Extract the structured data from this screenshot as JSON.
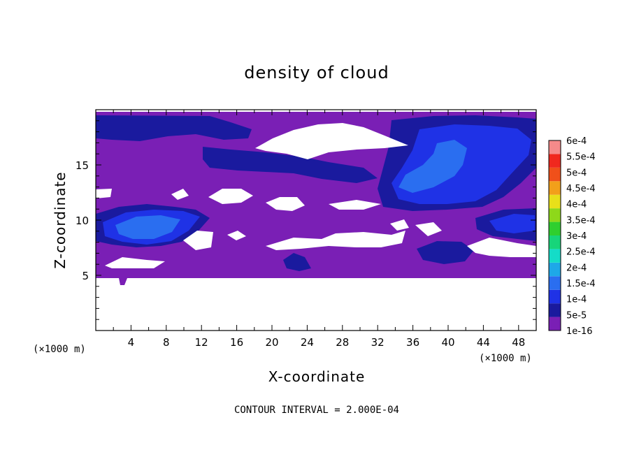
{
  "chart_data": {
    "type": "heatmap",
    "title": "density of cloud",
    "xlabel": "X-coordinate",
    "ylabel": "Z-coordinate",
    "x_unit": "(×1000 m)",
    "y_unit": "(×1000 m)",
    "xlim": [
      0,
      50
    ],
    "ylim": [
      0,
      20
    ],
    "x_ticks": [
      4,
      8,
      12,
      16,
      20,
      24,
      28,
      32,
      36,
      40,
      44,
      48
    ],
    "y_ticks": [
      5,
      10,
      15
    ],
    "colorbar": {
      "labels": [
        "1e-16",
        "5e-5",
        "1e-4",
        "1.5e-4",
        "2e-4",
        "2.5e-4",
        "3e-4",
        "3.5e-4",
        "4e-4",
        "4.5e-4",
        "5e-4",
        "5.5e-4",
        "6e-4"
      ],
      "colors": [
        "#7a1fb5",
        "#1a1a9e",
        "#1f32e6",
        "#2a6ef0",
        "#1ea8e8",
        "#14dcc8",
        "#17d57a",
        "#2fcf2f",
        "#8ed81a",
        "#e8e01a",
        "#f2a01a",
        "#f0501a",
        "#f0281e",
        "#f58a8a"
      ]
    },
    "footer": "CONTOUR INTERVAL = 2.000E-04"
  }
}
